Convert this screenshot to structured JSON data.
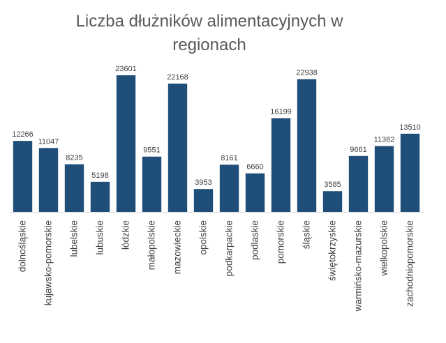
{
  "chart_data": {
    "type": "bar",
    "title_lines": [
      "Liczba dłużników alimentacyjnych w",
      "regionach"
    ],
    "categories": [
      "dolnośląskie",
      "kujawsko-pomorskie",
      "lubelskie",
      "lubuskie",
      "łódzkie",
      "małopolskie",
      "mazowieckie",
      "opolskie",
      "podkarpackie",
      "podlaskie",
      "pomorskie",
      "śląskie",
      "świętokrzyskie",
      "warmińsko-mazurskie",
      "wielkopolskie",
      "zachodniopomorskie"
    ],
    "values": [
      12266,
      11047,
      8235,
      5198,
      23601,
      9551,
      22168,
      3953,
      8161,
      6660,
      16199,
      22938,
      3585,
      9661,
      11382,
      13510
    ],
    "ylim": [
      0,
      23601
    ],
    "bar_color": "#1F4E79",
    "grid": false,
    "legend": "none"
  }
}
